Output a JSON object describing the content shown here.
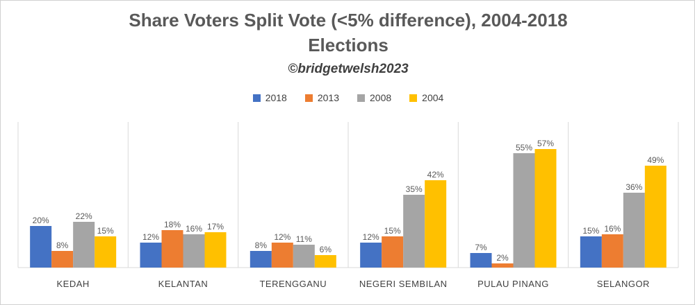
{
  "chart_data": {
    "type": "bar",
    "title_line1": "Share Voters Split Vote (<5% difference), 2004-2018",
    "title_line2": "Elections",
    "subtitle": "©bridgetwelsh2023",
    "categories": [
      "KEDAH",
      "KELANTAN",
      "TERENGGANU",
      "NEGERI SEMBILAN",
      "PULAU PINANG",
      "SELANGOR"
    ],
    "series": [
      {
        "name": "2018",
        "color": "#4472C4",
        "values": [
          20,
          12,
          8,
          12,
          7,
          15
        ]
      },
      {
        "name": "2013",
        "color": "#ED7D31",
        "values": [
          8,
          18,
          12,
          15,
          2,
          16
        ]
      },
      {
        "name": "2008",
        "color": "#A5A5A5",
        "values": [
          22,
          16,
          11,
          35,
          55,
          36
        ]
      },
      {
        "name": "2004",
        "color": "#FFC000",
        "values": [
          15,
          17,
          6,
          42,
          57,
          49
        ]
      }
    ],
    "value_suffix": "%",
    "ylim": [
      0,
      60
    ],
    "legend_position": "top",
    "grid": false,
    "category_separators": true
  }
}
